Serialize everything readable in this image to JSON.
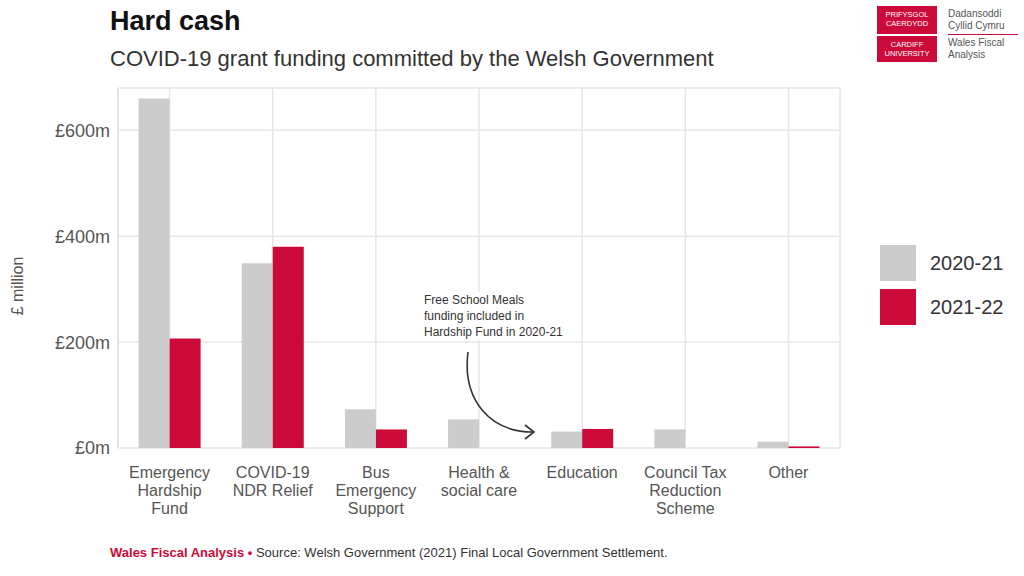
{
  "chart_data": {
    "type": "bar",
    "title": "Hard cash",
    "subtitle": "COVID-19 grant funding committed by the Welsh Government",
    "y_label": "£ million",
    "categories": [
      "Emergency\nHardship\nFund",
      "COVID-19\nNDR Relief",
      "Bus\nEmergency\nSupport",
      "Health &\nsocial care",
      "Education",
      "Council Tax\nReduction\nScheme",
      "Other"
    ],
    "series": [
      {
        "name": "2020-21",
        "color": "#cccccc",
        "values": [
          660,
          349,
          73,
          54,
          31,
          35,
          12
        ]
      },
      {
        "name": "2021-22",
        "color": "#cc0a3a",
        "values": [
          207,
          380,
          35,
          null,
          36,
          null,
          3
        ]
      }
    ],
    "ylim": [
      0,
      680
    ],
    "yticks": [
      {
        "value": 0,
        "label": "£0m"
      },
      {
        "value": 200,
        "label": "£200m"
      },
      {
        "value": 400,
        "label": "£400m"
      },
      {
        "value": 600,
        "label": "£600m"
      }
    ],
    "grid": true,
    "legend": "right",
    "annotation": "Free School Meals\nfunding included in\nHardship Fund in 2020-21",
    "footer": {
      "brand": "Wales Fiscal Analysis •",
      "source": "Source: Welsh Government (2021) Final Local Government Settlement."
    },
    "logo": {
      "welsh": "PRIFYSGOL\nCAERDYDD",
      "english": "CARDIFF\nUNIVERSITY",
      "text_welsh": "Dadansoddi\nCyllid Cymru",
      "text_english": "Wales Fiscal\nAnalysis"
    }
  }
}
